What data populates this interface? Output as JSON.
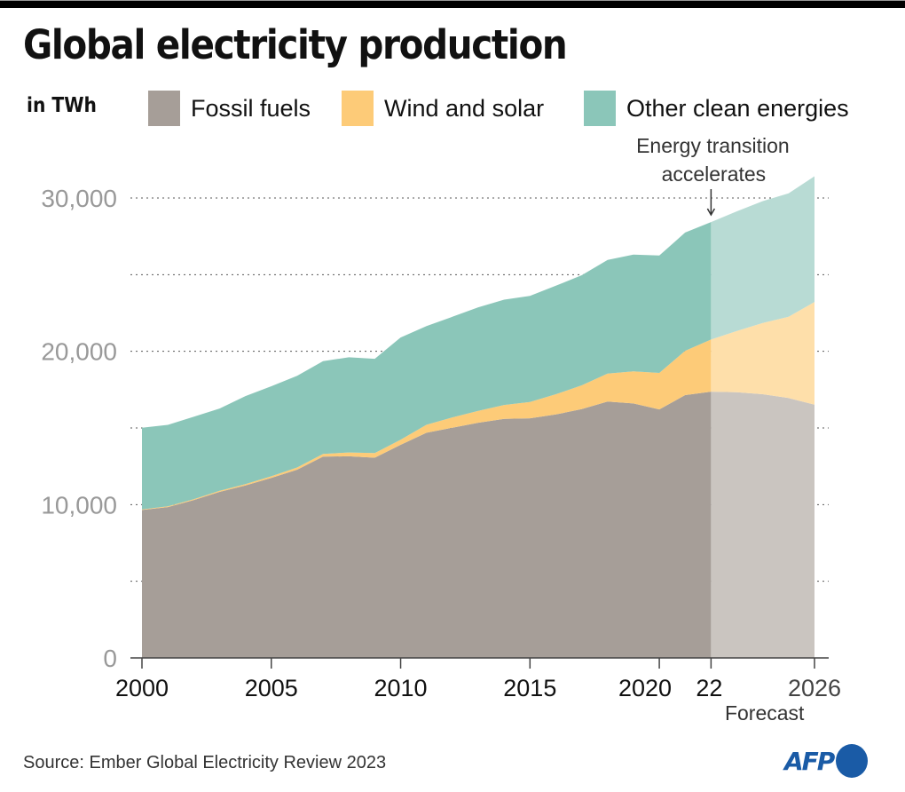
{
  "header": {
    "title": "Global electricity production",
    "unit": "in TWh"
  },
  "legend": [
    {
      "name": "Fossil fuels",
      "color": "#a69e98"
    },
    {
      "name": "Wind and solar",
      "color": "#fdcb78"
    },
    {
      "name": "Other clean energies",
      "color": "#8bc6b9"
    }
  ],
  "footer": {
    "source": "Source: Ember Global Electricity Review 2023",
    "logo": "AFP"
  },
  "chart_data": {
    "type": "area",
    "stacked": true,
    "title": "Global electricity production",
    "ylabel": "in TWh",
    "xlabel": "",
    "ylim": [
      0,
      32000
    ],
    "yticks": [
      0,
      10000,
      20000,
      30000
    ],
    "ytick_labels": [
      "0",
      "10,000",
      "20,000",
      "30,000"
    ],
    "gridlines": [
      5000,
      10000,
      15000,
      20000,
      25000,
      30000
    ],
    "grid": true,
    "xlim": [
      2000,
      2026
    ],
    "xticks": [
      2000,
      2005,
      2010,
      2015,
      2020,
      2022,
      2026
    ],
    "xtick_labels": [
      "2000",
      "2005",
      "2010",
      "2015",
      "2020",
      "22",
      "2026"
    ],
    "forecast_start": 2022,
    "forecast_label": "Forecast",
    "annotation": {
      "text_line1": "Energy transition",
      "text_line2": "accelerates",
      "x": 2022
    },
    "x": [
      2000,
      2001,
      2002,
      2003,
      2004,
      2005,
      2006,
      2007,
      2008,
      2009,
      2010,
      2011,
      2012,
      2013,
      2014,
      2015,
      2016,
      2017,
      2018,
      2019,
      2020,
      2021,
      2022,
      2023,
      2024,
      2025,
      2026
    ],
    "series": [
      {
        "name": "Fossil fuels",
        "color": "#a69e98",
        "forecast_color": "#cac5c0",
        "values": [
          9650,
          9840,
          10290,
          10830,
          11250,
          11740,
          12280,
          13130,
          13150,
          13060,
          13900,
          14690,
          15020,
          15340,
          15590,
          15630,
          15880,
          16230,
          16720,
          16600,
          16210,
          17140,
          17370,
          17330,
          17200,
          16950,
          16520
        ]
      },
      {
        "name": "Wind and solar",
        "color": "#fdcb78",
        "forecast_color": "#fedfaa",
        "values": [
          40,
          50,
          60,
          70,
          90,
          110,
          140,
          180,
          250,
          300,
          330,
          520,
          670,
          780,
          910,
          1060,
          1320,
          1550,
          1830,
          2090,
          2380,
          2890,
          3400,
          4000,
          4650,
          5300,
          6700
        ]
      },
      {
        "name": "Other clean energies",
        "color": "#8bc6b9",
        "forecast_color": "#b8dbd4",
        "values": [
          5320,
          5310,
          5380,
          5370,
          5740,
          5870,
          5980,
          6050,
          6210,
          6150,
          6670,
          6430,
          6560,
          6750,
          6870,
          6920,
          7080,
          7180,
          7410,
          7620,
          7660,
          7720,
          7660,
          7800,
          7950,
          8050,
          8200
        ]
      }
    ]
  }
}
